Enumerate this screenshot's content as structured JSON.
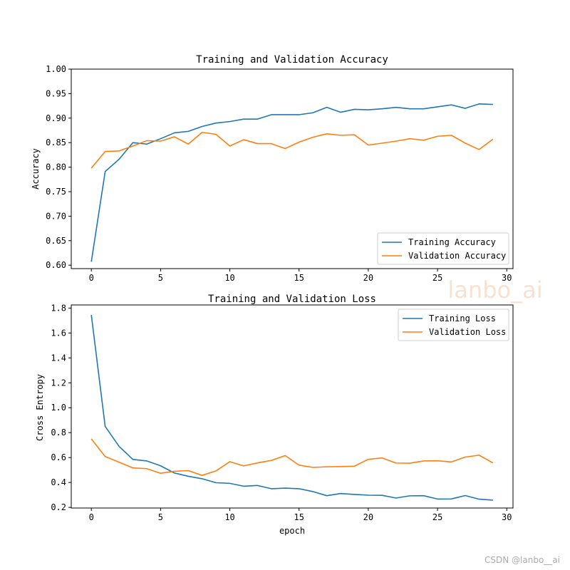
{
  "chart_data": [
    {
      "type": "line",
      "title": "Training and Validation Accuracy",
      "xlabel": "",
      "ylabel": "Accuracy",
      "xlim": [
        -1.45,
        30.45
      ],
      "ylim": [
        0.593,
        1.0
      ],
      "xticks": [
        0,
        5,
        10,
        15,
        20,
        25,
        30
      ],
      "xtick_labels": [
        "0",
        "5",
        "10",
        "15",
        "20",
        "25",
        "30"
      ],
      "yticks": [
        0.6,
        0.65,
        0.7,
        0.75,
        0.8,
        0.85,
        0.9,
        0.95,
        1.0
      ],
      "ytick_labels": [
        "0.60",
        "0.65",
        "0.70",
        "0.75",
        "0.80",
        "0.85",
        "0.90",
        "0.95",
        "1.00"
      ],
      "legend_position": "lower-right",
      "x": [
        0,
        1,
        2,
        3,
        4,
        5,
        6,
        7,
        8,
        9,
        10,
        11,
        12,
        13,
        14,
        15,
        16,
        17,
        18,
        19,
        20,
        21,
        22,
        23,
        24,
        25,
        26,
        27,
        28,
        29
      ],
      "series": [
        {
          "name": "Training Accuracy",
          "color": "#1f77b4",
          "values": [
            0.607,
            0.791,
            0.816,
            0.85,
            0.847,
            0.858,
            0.87,
            0.873,
            0.883,
            0.89,
            0.893,
            0.898,
            0.898,
            0.907,
            0.907,
            0.907,
            0.911,
            0.922,
            0.912,
            0.918,
            0.917,
            0.919,
            0.922,
            0.919,
            0.919,
            0.923,
            0.927,
            0.92,
            0.929,
            0.928
          ]
        },
        {
          "name": "Validation Accuracy",
          "color": "#ff7f0e",
          "values": [
            0.798,
            0.832,
            0.833,
            0.843,
            0.854,
            0.853,
            0.862,
            0.847,
            0.871,
            0.867,
            0.843,
            0.856,
            0.848,
            0.848,
            0.838,
            0.851,
            0.861,
            0.868,
            0.865,
            0.866,
            0.845,
            0.849,
            0.853,
            0.858,
            0.855,
            0.863,
            0.865,
            0.849,
            0.836,
            0.857
          ]
        }
      ]
    },
    {
      "type": "line",
      "title": "Training and Validation Loss",
      "xlabel": "epoch",
      "ylabel": "Cross Entropy",
      "xlim": [
        -1.45,
        30.45
      ],
      "ylim": [
        0.195,
        1.825
      ],
      "xticks": [
        0,
        5,
        10,
        15,
        20,
        25,
        30
      ],
      "xtick_labels": [
        "0",
        "5",
        "10",
        "15",
        "20",
        "25",
        "30"
      ],
      "yticks": [
        0.2,
        0.4,
        0.6,
        0.8,
        1.0,
        1.2,
        1.4,
        1.6,
        1.8
      ],
      "ytick_labels": [
        "0.2",
        "0.4",
        "0.6",
        "0.8",
        "1.0",
        "1.2",
        "1.4",
        "1.6",
        "1.8"
      ],
      "legend_position": "upper-right",
      "x": [
        0,
        1,
        2,
        3,
        4,
        5,
        6,
        7,
        8,
        9,
        10,
        11,
        12,
        13,
        14,
        15,
        16,
        17,
        18,
        19,
        20,
        21,
        22,
        23,
        24,
        25,
        26,
        27,
        28,
        29
      ],
      "series": [
        {
          "name": "Training Loss",
          "color": "#1f77b4",
          "values": [
            1.745,
            0.85,
            0.69,
            0.585,
            0.573,
            0.534,
            0.476,
            0.45,
            0.43,
            0.398,
            0.393,
            0.37,
            0.376,
            0.35,
            0.355,
            0.35,
            0.327,
            0.294,
            0.311,
            0.304,
            0.298,
            0.297,
            0.275,
            0.293,
            0.294,
            0.267,
            0.268,
            0.295,
            0.266,
            0.258
          ]
        },
        {
          "name": "Validation Loss",
          "color": "#ff7f0e",
          "values": [
            0.75,
            0.608,
            0.563,
            0.517,
            0.511,
            0.474,
            0.49,
            0.495,
            0.457,
            0.493,
            0.567,
            0.533,
            0.557,
            0.577,
            0.616,
            0.539,
            0.521,
            0.526,
            0.528,
            0.531,
            0.586,
            0.597,
            0.556,
            0.555,
            0.573,
            0.574,
            0.565,
            0.604,
            0.619,
            0.557
          ]
        }
      ]
    }
  ],
  "watermark": "lanbo_ai",
  "credit": "CSDN @lanbo__ai"
}
